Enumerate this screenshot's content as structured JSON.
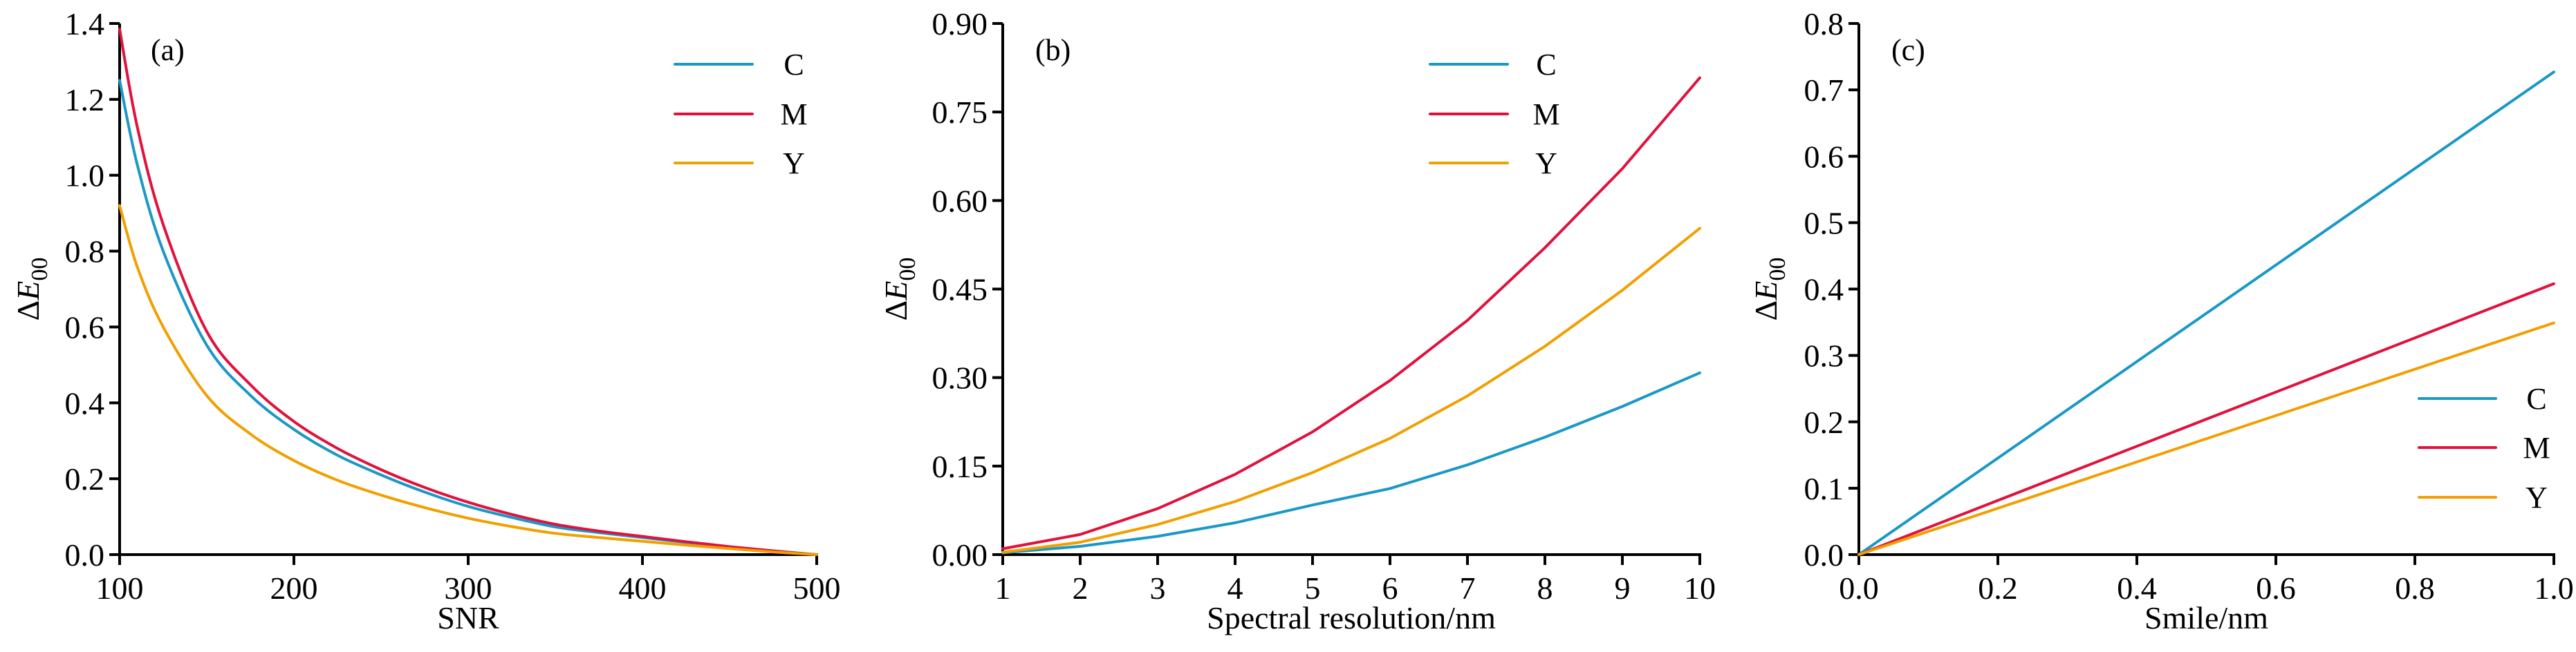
{
  "chart_data": [
    {
      "type": "line",
      "panel_label": "(a)",
      "title": "",
      "xlabel": "SNR",
      "ylabel": "ΔE",
      "ylabel_sub": "00",
      "xlim": [
        100,
        500
      ],
      "ylim": [
        0,
        1.4
      ],
      "xticks": [
        100,
        200,
        300,
        400,
        500
      ],
      "xtick_labels": [
        "100",
        "200",
        "300",
        "400",
        "500"
      ],
      "yticks": [
        0,
        0.2,
        0.4,
        0.6,
        0.8,
        1.0,
        1.2,
        1.4
      ],
      "ytick_labels": [
        "0.0",
        "0.2",
        "0.4",
        "0.6",
        "0.8",
        "1.0",
        "1.2",
        "1.4"
      ],
      "grid": false,
      "legend_position": "top-right",
      "x": [
        100,
        110,
        125,
        150,
        175,
        200,
        225,
        250,
        275,
        300,
        325,
        350,
        375,
        400,
        425,
        450,
        475,
        500
      ],
      "series": [
        {
          "name": "C",
          "color": "#1a98c6",
          "values": [
            1.25,
            1.03,
            0.8,
            0.552,
            0.42,
            0.33,
            0.262,
            0.21,
            0.165,
            0.127,
            0.098,
            0.073,
            0.058,
            0.045,
            0.032,
            0.02,
            0.009,
            0.0
          ]
        },
        {
          "name": "M",
          "color": "#e0123d",
          "values": [
            1.385,
            1.13,
            0.87,
            0.588,
            0.448,
            0.351,
            0.28,
            0.224,
            0.177,
            0.138,
            0.106,
            0.08,
            0.062,
            0.048,
            0.034,
            0.021,
            0.01,
            0.0
          ]
        },
        {
          "name": "Y",
          "color": "#f0a000",
          "values": [
            0.92,
            0.76,
            0.6,
            0.419,
            0.318,
            0.248,
            0.196,
            0.157,
            0.124,
            0.096,
            0.074,
            0.056,
            0.045,
            0.035,
            0.025,
            0.016,
            0.007,
            0.0
          ]
        }
      ]
    },
    {
      "type": "line",
      "panel_label": "(b)",
      "title": "",
      "xlabel": "Spectral resolution/nm",
      "ylabel": "ΔE",
      "ylabel_sub": "00",
      "xlim": [
        1,
        10
      ],
      "ylim": [
        0,
        0.9
      ],
      "xticks": [
        1,
        2,
        3,
        4,
        5,
        6,
        7,
        8,
        9,
        10
      ],
      "xtick_labels": [
        "1",
        "2",
        "3",
        "4",
        "5",
        "6",
        "7",
        "8",
        "9",
        "10"
      ],
      "yticks": [
        0,
        0.15,
        0.3,
        0.45,
        0.6,
        0.75,
        0.9
      ],
      "ytick_labels": [
        "0.00",
        "0.15",
        "0.30",
        "0.45",
        "0.60",
        "0.75",
        "0.90"
      ],
      "grid": false,
      "legend_position": "top-right",
      "x": [
        1,
        2,
        3,
        4,
        5,
        6,
        7,
        8,
        9,
        10
      ],
      "series": [
        {
          "name": "C",
          "color": "#1a98c6",
          "values": [
            0.003,
            0.014,
            0.031,
            0.054,
            0.084,
            0.112,
            0.152,
            0.199,
            0.251,
            0.308
          ]
        },
        {
          "name": "M",
          "color": "#e0123d",
          "values": [
            0.01,
            0.034,
            0.078,
            0.136,
            0.208,
            0.295,
            0.397,
            0.52,
            0.654,
            0.808
          ]
        },
        {
          "name": "Y",
          "color": "#f0a000",
          "values": [
            0.004,
            0.021,
            0.051,
            0.09,
            0.139,
            0.197,
            0.269,
            0.353,
            0.448,
            0.553
          ]
        }
      ]
    },
    {
      "type": "line",
      "panel_label": "(c)",
      "title": "",
      "xlabel": "Smile/nm",
      "ylabel": "ΔE",
      "ylabel_sub": "00",
      "xlim": [
        0,
        1.0
      ],
      "ylim": [
        0,
        0.8
      ],
      "xticks": [
        0,
        0.2,
        0.4,
        0.6,
        0.8,
        1.0
      ],
      "xtick_labels": [
        "0.0",
        "0.2",
        "0.4",
        "0.6",
        "0.8",
        "1.0"
      ],
      "yticks": [
        0,
        0.1,
        0.2,
        0.3,
        0.4,
        0.5,
        0.6,
        0.7,
        0.8
      ],
      "ytick_labels": [
        "0.0",
        "0.1",
        "0.2",
        "0.3",
        "0.4",
        "0.5",
        "0.6",
        "0.7",
        "0.8"
      ],
      "grid": false,
      "legend_position": "bottom-right",
      "x": [
        0,
        1.0
      ],
      "series": [
        {
          "name": "C",
          "color": "#1a98c6",
          "values": [
            0,
            0.727
          ]
        },
        {
          "name": "M",
          "color": "#e0123d",
          "values": [
            0,
            0.408
          ]
        },
        {
          "name": "Y",
          "color": "#f0a000",
          "values": [
            0,
            0.349
          ]
        }
      ]
    }
  ]
}
